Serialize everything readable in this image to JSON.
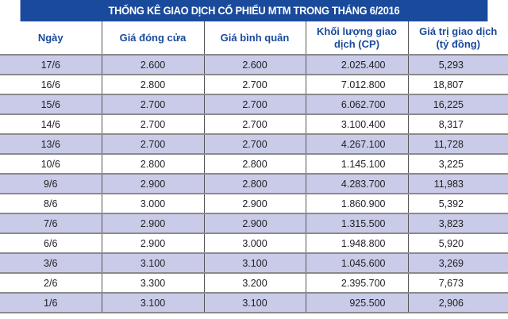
{
  "title": "THỐNG KÊ GIAO DỊCH CỔ PHIẾU MTM TRONG THÁNG 6/2016",
  "colors": {
    "title_bg": "#1a4a9c",
    "header_text": "#1a4a9c",
    "row_shade": "#c9cbe9",
    "row_plain": "#ffffff"
  },
  "headers": [
    "Ngày",
    "Giá đóng cửa",
    "Giá bình quân",
    "Khối lượng giao dịch (CP)",
    "Giá trị giao dịch (tỷ đồng)"
  ],
  "rows": [
    [
      "17/6",
      "2.600",
      "2.600",
      "2.025.400",
      "5,293"
    ],
    [
      "16/6",
      "2.800",
      "2.700",
      "7.012.800",
      "18,807"
    ],
    [
      "15/6",
      "2.700",
      "2.700",
      "6.062.700",
      "16,225"
    ],
    [
      "14/6",
      "2.700",
      "2.700",
      "3.100.400",
      "8,317"
    ],
    [
      "13/6",
      "2.700",
      "2.700",
      "4.267.100",
      "11,728"
    ],
    [
      "10/6",
      "2.800",
      "2.800",
      "1.145.100",
      "3,225"
    ],
    [
      "9/6",
      "2.900",
      "2.800",
      "4.283.700",
      "11,983"
    ],
    [
      "8/6",
      "3.000",
      "2.900",
      "1.860.900",
      "5,392"
    ],
    [
      "7/6",
      "2.900",
      "2.900",
      "1.315.500",
      "3,823"
    ],
    [
      "6/6",
      "2.900",
      "3.000",
      "1.948.800",
      "5,920"
    ],
    [
      "3/6",
      "3.100",
      "3.100",
      "1.045.600",
      "3,269"
    ],
    [
      "2/6",
      "3.300",
      "3.200",
      "2.395.700",
      "7,673"
    ],
    [
      "1/6",
      "3.100",
      "3.100",
      "925.500",
      "2,906"
    ]
  ]
}
